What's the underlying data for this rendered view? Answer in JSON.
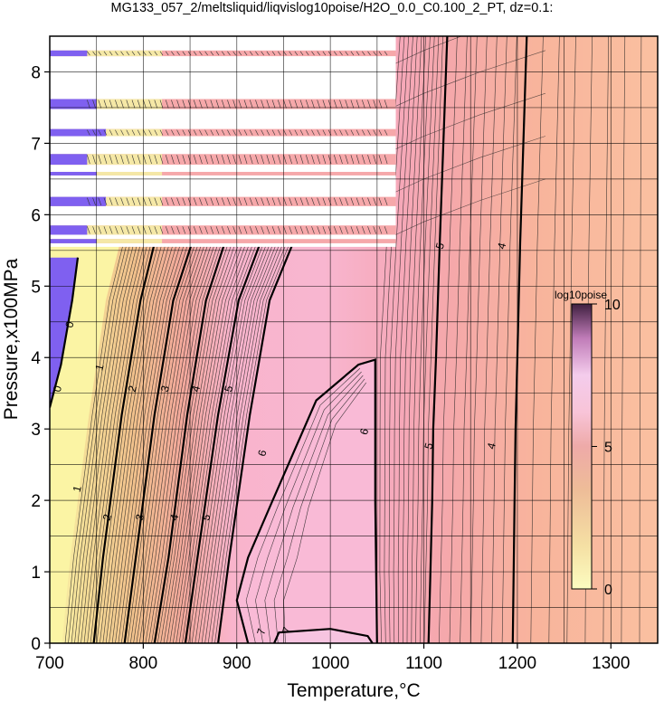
{
  "chart_data": {
    "type": "heatmap",
    "title": "MG133_057_2/meltsliquid/liqvislog10poise/H2O_0.0_C0.100_2_PT, dz=0.1:",
    "xlabel": "Temperature,°C",
    "ylabel": "Pressure,x100MPa",
    "xlim": [
      700,
      1350
    ],
    "ylim": [
      0,
      8.5
    ],
    "x_ticks": [
      "700",
      "800",
      "900",
      "1000",
      "1100",
      "1200",
      "1300"
    ],
    "y_ticks": [
      "0",
      "1",
      "2",
      "3",
      "4",
      "5",
      "6",
      "7",
      "8"
    ],
    "grid": true,
    "colorbar": {
      "label": "log10poise",
      "range": [
        0,
        10
      ],
      "ticks": [
        "0",
        "5",
        "10"
      ],
      "colors": [
        "#fcfcc0",
        "#f5dca0",
        "#eab48c",
        "#f0a0a8",
        "#f8c0d8",
        "#e080c0",
        "#a05090",
        "#402040"
      ],
      "placement": "right, inside plot"
    },
    "zero_region_color": "#7f60f0",
    "contour_labels": [
      {
        "text": "0",
        "x": 712,
        "y": 3.6
      },
      {
        "text": "0",
        "x": 725,
        "y": 4.5
      },
      {
        "text": "1",
        "x": 733,
        "y": 2.2
      },
      {
        "text": "1",
        "x": 757,
        "y": 3.9
      },
      {
        "text": "2",
        "x": 765,
        "y": 1.8
      },
      {
        "text": "2",
        "x": 792,
        "y": 3.6
      },
      {
        "text": "3",
        "x": 800,
        "y": 1.8
      },
      {
        "text": "3",
        "x": 827,
        "y": 3.6
      },
      {
        "text": "4",
        "x": 837,
        "y": 1.8
      },
      {
        "text": "4",
        "x": 860,
        "y": 3.6
      },
      {
        "text": "5",
        "x": 871,
        "y": 1.8
      },
      {
        "text": "5",
        "x": 895,
        "y": 3.6
      },
      {
        "text": "6",
        "x": 931,
        "y": 2.7
      },
      {
        "text": "6",
        "x": 1040,
        "y": 3.0
      },
      {
        "text": "7",
        "x": 930,
        "y": 0.2
      },
      {
        "text": "7",
        "x": 957,
        "y": 0.22
      },
      {
        "text": "5",
        "x": 1109,
        "y": 2.8
      },
      {
        "text": "5",
        "x": 1121,
        "y": 5.6
      },
      {
        "text": "4",
        "x": 1176,
        "y": 2.8
      },
      {
        "text": "4",
        "x": 1187,
        "y": 5.6
      }
    ]
  }
}
